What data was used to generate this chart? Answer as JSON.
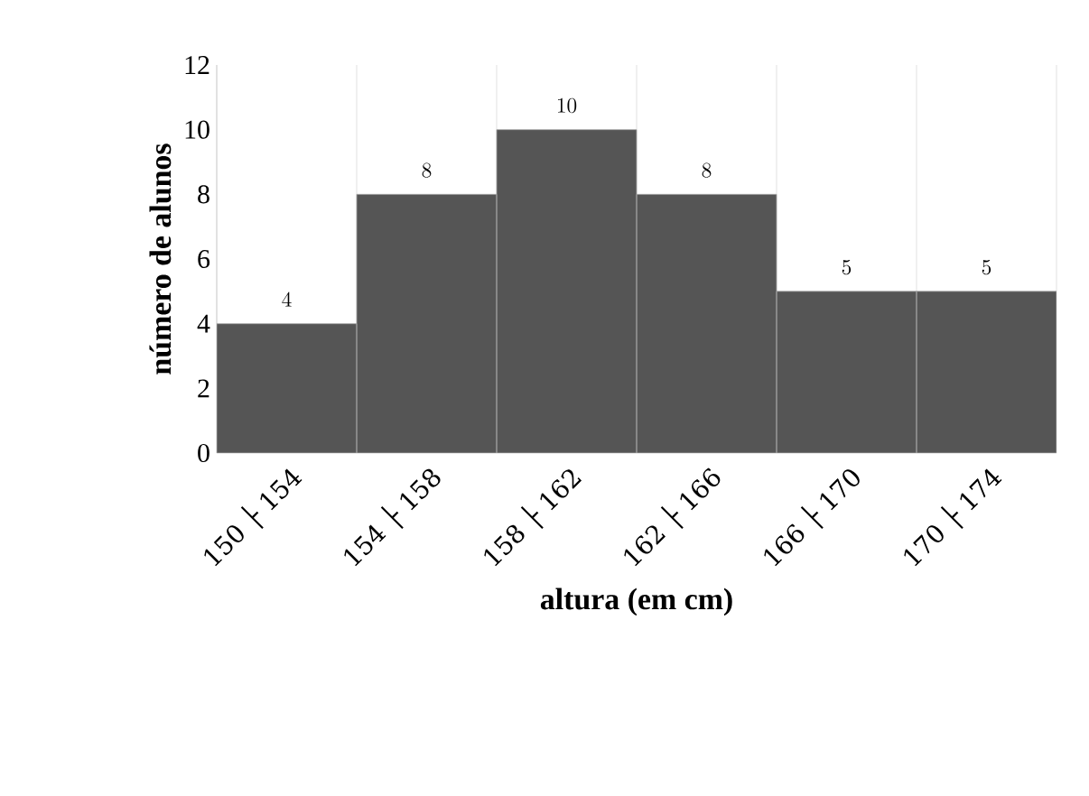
{
  "chart_data": {
    "type": "bar",
    "xlabel": "altura (em cm)",
    "ylabel": "número de alunos",
    "categories": [
      "150 ├ 154",
      "154 ├ 158",
      "158 ├ 162",
      "162 ├ 166",
      "166 ├ 170",
      "170 ├ 174"
    ],
    "values": [
      4,
      8,
      10,
      8,
      5,
      5
    ],
    "color": "#555555",
    "data_labels": true,
    "grid": "x",
    "ylim": [
      0,
      12
    ],
    "yticks": [
      0,
      2,
      4,
      6,
      8,
      10,
      12
    ]
  }
}
